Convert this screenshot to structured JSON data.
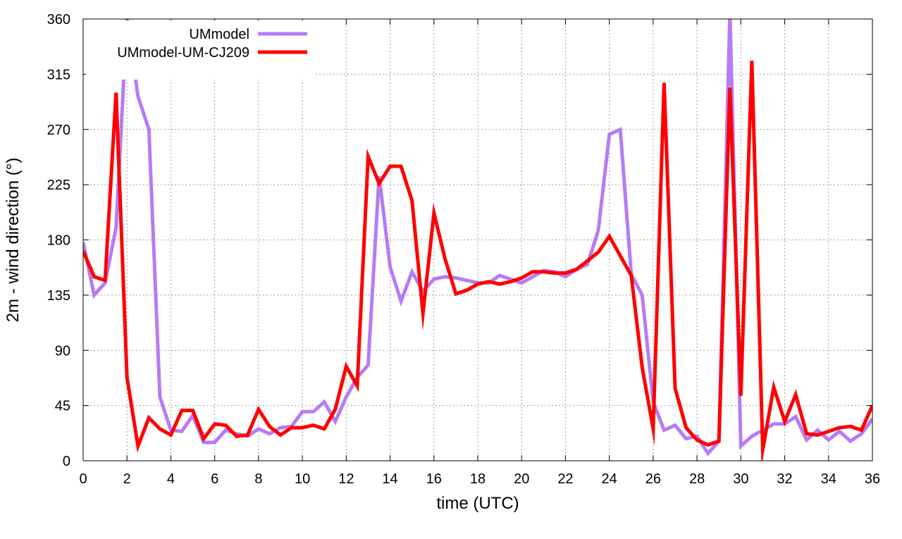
{
  "chart_data": {
    "type": "line",
    "title": "",
    "xlabel": "time (UTC)",
    "ylabel": "2m - wind direction (°)",
    "xlim": [
      0,
      36
    ],
    "ylim": [
      0,
      360
    ],
    "xticks": [
      "0",
      "2",
      "4",
      "6",
      "8",
      "10",
      "12",
      "14",
      "16",
      "18",
      "20",
      "22",
      "24",
      "26",
      "28",
      "30",
      "32",
      "34",
      "36"
    ],
    "yticks": [
      "0",
      "45",
      "90",
      "135",
      "180",
      "225",
      "270",
      "315",
      "360"
    ],
    "grid": true,
    "legend_position": "top-left",
    "series": [
      {
        "name": "UMmodel",
        "color": "#b57cf5",
        "x": [
          0,
          0.5,
          1,
          1.5,
          2,
          2.5,
          3,
          3.5,
          4,
          4.5,
          5,
          5.5,
          6,
          6.5,
          7,
          7.5,
          8,
          8.5,
          9,
          9.5,
          10,
          10.5,
          11,
          11.5,
          12,
          12.5,
          13,
          13.5,
          14,
          14.5,
          15,
          15.5,
          16,
          16.5,
          17,
          17.5,
          18,
          18.5,
          19,
          19.5,
          20,
          20.5,
          21,
          21.5,
          22,
          22.5,
          23,
          23.5,
          24,
          24.5,
          25,
          25.5,
          26,
          26.5,
          27,
          27.5,
          28,
          28.5,
          29,
          29.5,
          30,
          30.5,
          31,
          31.5,
          32,
          32.5,
          33,
          33.5,
          34,
          34.5,
          35,
          35.5,
          36
        ],
        "y": [
          178,
          135,
          145,
          190,
          362,
          297,
          270,
          52,
          25,
          24,
          37,
          15,
          15,
          25,
          22,
          20,
          26,
          22,
          27,
          28,
          40,
          40,
          48,
          32,
          52,
          68,
          78,
          232,
          158,
          130,
          154,
          138,
          148,
          150,
          149,
          147,
          145,
          145,
          151,
          148,
          145,
          150,
          155,
          154,
          150,
          156,
          160,
          188,
          266,
          270,
          152,
          135,
          48,
          25,
          29,
          18,
          20,
          6,
          16,
          366,
          12,
          20,
          25,
          30,
          30,
          36,
          17,
          25,
          17,
          24,
          16,
          22,
          34
        ]
      },
      {
        "name": "UMmodel-UM-CJ209",
        "color": "#ff0000",
        "x": [
          0,
          0.5,
          1,
          1.5,
          2,
          2.5,
          3,
          3.5,
          4,
          4.5,
          5,
          5.5,
          6,
          6.5,
          7,
          7.5,
          8,
          8.5,
          9,
          9.5,
          10,
          10.5,
          11,
          11.5,
          12,
          12.5,
          13,
          13.5,
          14,
          14.5,
          15,
          15.5,
          16,
          16.5,
          17,
          17.5,
          18,
          18.5,
          19,
          19.5,
          20,
          20.5,
          21,
          21.5,
          22,
          22.5,
          23,
          23.5,
          24,
          24.5,
          25,
          25.5,
          26,
          26.5,
          27,
          27.5,
          28,
          28.5,
          29,
          29.5,
          30,
          30.5,
          31,
          31.5,
          32,
          32.5,
          33,
          33.5,
          34,
          34.5,
          35,
          35.5,
          36
        ],
        "y": [
          171,
          150,
          147,
          300,
          68,
          12,
          35,
          26,
          21,
          41,
          41,
          18,
          30,
          29,
          20,
          21,
          42,
          28,
          21,
          27,
          27,
          29,
          26,
          42,
          77,
          61,
          248,
          226,
          240,
          240,
          212,
          120,
          202,
          165,
          136,
          139,
          144,
          146,
          144,
          146,
          149,
          154,
          154,
          153,
          153,
          156,
          163,
          170,
          183,
          167,
          151,
          76,
          26,
          308,
          59,
          27,
          17,
          13,
          16,
          304,
          53,
          326,
          9,
          60,
          32,
          54,
          22,
          21,
          24,
          27,
          28,
          25,
          45
        ]
      }
    ]
  }
}
